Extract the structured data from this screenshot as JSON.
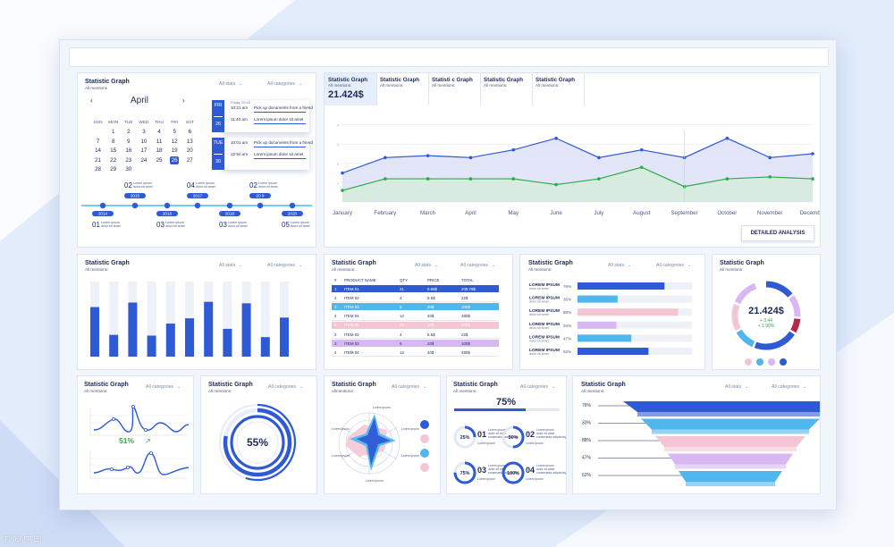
{
  "common": {
    "title": "Statistic Graph",
    "mentions": "All mentions:",
    "all_stats": "All stats",
    "all_categories": "All categories",
    "colors": {
      "accent": "#2f5ad6",
      "light_blue": "#4fb7ee",
      "pink": "#f4c6d3",
      "lavender": "#d8b8f2",
      "green": "#2fa84a",
      "dark_red": "#b5284a"
    }
  },
  "calendar": {
    "title": "Statistic Graph",
    "mentions": "All mentions",
    "filters": [
      "All stats",
      "All categories"
    ],
    "month": "April",
    "weekdays": [
      "SUN",
      "MON",
      "TUE",
      "WED",
      "THU",
      "FRI",
      "SAT"
    ],
    "weeks": [
      [
        "",
        "1",
        "2",
        "3",
        "4",
        "5",
        "6"
      ],
      [
        "7",
        "8",
        "9",
        "10",
        "11",
        "12",
        "13"
      ],
      [
        "14",
        "15",
        "16",
        "17",
        "18",
        "19",
        "20"
      ],
      [
        "21",
        "22",
        "23",
        "24",
        "25",
        "26",
        "27"
      ],
      [
        "28",
        "29",
        "30",
        "",
        "",
        "",
        ""
      ]
    ],
    "selected": "26",
    "events": [
      {
        "day": "FRI",
        "date": "26",
        "header": "Friday, 09:15",
        "items": [
          {
            "time": "10:21 am",
            "text": "Pick up documents from a friend"
          },
          {
            "time": "11:40 am",
            "text": "Lorem ipsum dolor sit amet"
          }
        ]
      },
      {
        "day": "TUE",
        "date": "30",
        "header": "",
        "items": [
          {
            "time": "10:01 am",
            "text": "Pick up documents from a friend"
          },
          {
            "time": "12:50 am",
            "text": "Lorem ipsum dolor sit amet"
          }
        ]
      }
    ]
  },
  "timeline": {
    "top": [
      {
        "num": "02",
        "year": "2015",
        "line1": "Lorem ipsum",
        "line2": "dolor sit amet"
      },
      {
        "num": "04",
        "year": "2017",
        "line1": "Lorem ipsum",
        "line2": "dolor sit amet"
      },
      {
        "num": "02",
        "year": "20 9",
        "line1": "Lorem ipsum",
        "line2": "dolor sit amet"
      }
    ],
    "bottom": [
      {
        "num": "01",
        "year": "2014",
        "line1": "Lorem ipsum",
        "line2": "dolor sit amet"
      },
      {
        "num": "03",
        "year": "2016",
        "line1": "Lorem ipsum",
        "line2": "dolor sit amet"
      },
      {
        "num": "03",
        "year": "2018",
        "line1": "Lorem ipsum",
        "line2": "dolor sit amet"
      },
      {
        "num": "05",
        "year": "2020",
        "line1": "Lorem ipsum",
        "line2": "dolor sit amet"
      }
    ]
  },
  "line_card": {
    "tabs": [
      {
        "title": "Statistic Graph",
        "sub": "All mentions:",
        "value": "21.424$"
      },
      {
        "title": "Statistic Graph",
        "sub": "All mentions:"
      },
      {
        "title": "Statisti c Graph",
        "sub": "All mentions:"
      },
      {
        "title": "Statistic Graph",
        "sub": "All mentions:"
      },
      {
        "title": "Statistic Graph",
        "sub": "All mentions:"
      }
    ],
    "button": "DETAILED ANALYSIS",
    "chart_data": {
      "type": "area",
      "categories": [
        "January",
        "February",
        "March",
        "April",
        "May",
        "June",
        "July",
        "August",
        "September",
        "October",
        "November",
        "December"
      ],
      "series": [
        {
          "values": [
            1.5,
            2.3,
            2.4,
            2.3,
            2.7,
            3.3,
            2.3,
            2.7,
            2.3,
            3.3,
            2.3,
            2.5
          ]
        },
        {
          "values": [
            0.6,
            1.2,
            1.2,
            1.2,
            1.2,
            0.9,
            1.2,
            1.8,
            0.8,
            1.2,
            1.3,
            1.2
          ]
        }
      ],
      "ylim": [
        0,
        4
      ],
      "yticks": [
        "4",
        "3",
        "2",
        "1"
      ]
    }
  },
  "bar_card": {
    "title": "Statistic Graph",
    "mentions": "All mentions:",
    "filters": [
      "All stats",
      "All categories"
    ],
    "chart_data": {
      "type": "bar",
      "values": [
        66,
        29,
        72,
        28,
        44,
        51,
        73,
        37,
        71,
        26,
        52
      ],
      "ylim": [
        0,
        100
      ]
    }
  },
  "table_card": {
    "title": "Statistic Graph",
    "mentions": "All mentions:",
    "filters": [
      "All stats",
      "All categories"
    ],
    "headers": [
      "#",
      "PRODUCT NAME",
      "QTY",
      "PRICE",
      "TOTAL"
    ],
    "rows": [
      {
        "c": [
          "1",
          "ITEM 01",
          "21",
          "9.99$",
          "209.79$"
        ],
        "style": "blue"
      },
      {
        "c": [
          "2",
          "ITEM 02",
          "4",
          "5.5$",
          "22$"
        ],
        "style": "plain"
      },
      {
        "c": [
          "3",
          "ITEM 03",
          "5",
          "20$",
          "100$"
        ],
        "style": "lightblue"
      },
      {
        "c": [
          "4",
          "ITEM 04",
          "12",
          "40$",
          "480$"
        ],
        "style": "plain"
      },
      {
        "c": [
          "5",
          "ITEM 05",
          "20",
          "10$",
          "200$"
        ],
        "style": "pink"
      },
      {
        "c": [
          "2",
          "ITEM 02",
          "4",
          "5.5$",
          "22$"
        ],
        "style": "plain"
      },
      {
        "c": [
          "3",
          "ITEM 03",
          "5",
          "20$",
          "100$"
        ],
        "style": "lavender"
      },
      {
        "c": [
          "4",
          "ITEM 04",
          "12",
          "40$",
          "480$"
        ],
        "style": "plain"
      }
    ]
  },
  "hbar_card": {
    "title": "Statistic Graph",
    "mentions": "All mentions:",
    "filters": [
      "All stats",
      "All categories"
    ],
    "chart_data": {
      "type": "bar",
      "categories": [
        "LOREM IPSUM",
        "LOREM IPSUM",
        "LOREM IPSUM",
        "LOREM IPSUM",
        "LOREM IPSUM",
        "LOREM IPSUM"
      ],
      "sublabel": "dolor sit amet",
      "values": [
        76,
        35,
        88,
        34,
        47,
        62
      ],
      "value_labels": [
        "76%",
        "35%",
        "88%",
        "34%",
        "47%",
        "62%"
      ]
    }
  },
  "donut_card": {
    "title": "Statistic Graph",
    "mentions": "All mentions:",
    "value": "21.424$",
    "delta1": "+ 3.44",
    "delta2": "+ 1.90%"
  },
  "wave_card": {
    "title": "Statistic Graph",
    "mentions": "All mentions:",
    "filter": "All categories",
    "percent": "51%"
  },
  "ring_card": {
    "title": "Statistic Graph",
    "mentions": "All mentions:",
    "filter": "All categories",
    "percent": "55%",
    "chart_data": {
      "type": "pie",
      "value": 55
    }
  },
  "radar_card": {
    "title": "Statistic Graph",
    "mentions": "Allmentions:",
    "filter": "All categories",
    "labels": [
      "Lorem ipsum",
      "Lorem ipsum",
      "Lorem ipsum",
      "Lorem ipsum",
      "Lorem ipsum",
      "Lorem ipsum"
    ]
  },
  "kpi_card": {
    "title": "Statistic Graph",
    "mentions": "All mentions:",
    "filter": "All categories",
    "headline": "75%",
    "items": [
      {
        "pct": "25%",
        "num": "01",
        "l1": "Lorem ipsum",
        "l2": "dolor sit amet",
        "l3": "consectetur adipiscing"
      },
      {
        "pct": "50%",
        "num": "02",
        "l1": "Lorem ipsum",
        "l2": "dolor sit amet",
        "l3": "consectetur adipiscing"
      },
      {
        "pct": "75%",
        "num": "03",
        "l1": "Lorem ipsum",
        "l2": "dolor sit amet",
        "l3": "consectetur adipiscing"
      },
      {
        "pct": "100%",
        "num": "04",
        "l1": "Lorem ipsum",
        "l2": "dolor sit amet",
        "l3": "consectetur adipiscing"
      }
    ]
  },
  "funnel_card": {
    "title": "Statistic Graph",
    "mentions": "All mentions:",
    "filters": [
      "All stats",
      "All categories"
    ],
    "chart_data": {
      "type": "bar",
      "values": [
        76,
        33,
        88,
        47,
        62
      ],
      "value_labels": [
        "76%",
        "33%",
        "88%",
        "47%",
        "62%"
      ]
    }
  },
  "watermark": "视觉中国"
}
